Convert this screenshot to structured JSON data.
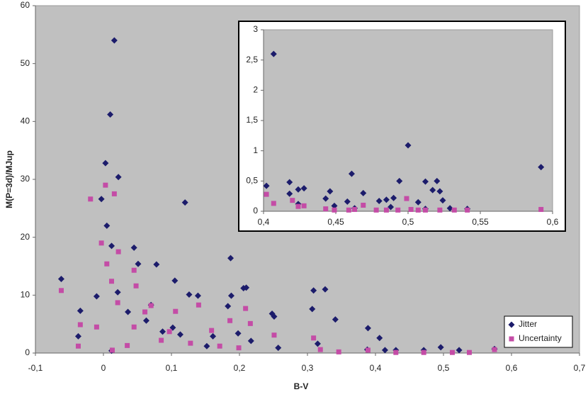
{
  "chart_data": [
    {
      "type": "scatter",
      "x_label": "B-V",
      "y_label": "M(P=3d)/MJup",
      "legend": "bottom-right",
      "xlim": [
        -0.1,
        0.7
      ],
      "ylim": [
        0,
        60
      ],
      "xticks": [
        {
          "value": -0.1,
          "label": "-0,1"
        },
        0,
        {
          "value": 0.1,
          "label": "0,1"
        },
        {
          "value": 0.2,
          "label": "0,2"
        },
        {
          "value": 0.3,
          "label": "0,3"
        },
        {
          "value": 0.4,
          "label": "0,4"
        },
        {
          "value": 0.5,
          "label": "0,5"
        },
        {
          "value": 0.6,
          "label": "0,6"
        },
        {
          "value": 0.7,
          "label": "0,7"
        }
      ],
      "yticks": [
        0,
        10,
        20,
        30,
        40,
        50,
        60
      ],
      "series": [
        {
          "name": "Jitter",
          "color": "#1c1c6b",
          "marker": "diamond",
          "x": [
            0.016,
            0.01,
            0.003,
            -0.003,
            0.022,
            0.005,
            0.012,
            0.045,
            0.12,
            -0.062,
            -0.034,
            -0.01,
            0.021,
            0.051,
            0.078,
            0.105,
            0.126,
            0.139,
            0.187,
            0.188,
            0.206,
            0.21,
            0.183,
            0.309,
            0.326,
            0.307,
            0.341,
            0.248,
            0.251,
            0.389,
            0.406,
            0.07,
            0.036,
            0.087,
            0.102,
            0.113,
            0.161,
            0.198,
            0.012,
            -0.037,
            0.063,
            0.152,
            0.217,
            0.257,
            0.315,
            0.388,
            0.414,
            0.496,
            0.575,
            0.43,
            0.471,
            0.523
          ],
          "values": [
            54,
            41.2,
            32.8,
            26.6,
            30.4,
            22,
            18.5,
            18.2,
            26,
            12.8,
            7.3,
            9.8,
            10.5,
            15.4,
            15.3,
            12.5,
            10.1,
            9.9,
            16.4,
            9.9,
            11.2,
            11.3,
            8.1,
            10.8,
            11,
            7.6,
            5.8,
            6.8,
            6.3,
            4.3,
            2.6,
            8.3,
            7.1,
            3.7,
            4.4,
            3.2,
            2.9,
            3.4,
            0.4,
            2.9,
            5.6,
            1.2,
            2.1,
            0.9,
            1.6,
            0.6,
            0.5,
            1.0,
            0.7,
            0.5,
            0.5,
            0.5
          ]
        },
        {
          "name": "Uncertainty",
          "color": "#c44ca6",
          "marker": "square",
          "x": [
            -0.019,
            0.003,
            0.016,
            -0.003,
            0.022,
            0.005,
            0.012,
            0.045,
            0.048,
            -0.062,
            0.021,
            -0.01,
            0.14,
            0.07,
            0.106,
            0.061,
            0.209,
            0.186,
            0.216,
            0.309,
            0.251,
            -0.034,
            -0.037,
            0.013,
            0.035,
            0.085,
            0.128,
            0.171,
            0.199,
            0.319,
            0.346,
            0.389,
            0.43,
            0.471,
            0.513,
            0.538,
            0.575,
            0.045,
            0.097,
            0.159
          ],
          "values": [
            26.6,
            29,
            27.5,
            19,
            17.5,
            15.4,
            12.4,
            14.3,
            11.6,
            10.8,
            8.7,
            4.5,
            8.3,
            8.2,
            7.2,
            7.1,
            7.7,
            5.6,
            5.1,
            2.6,
            3.1,
            4.9,
            1.2,
            0.5,
            1.3,
            2.2,
            1.7,
            1.2,
            0.9,
            0.6,
            0.2,
            0.5,
            0.1,
            0.1,
            0.1,
            0.1,
            0.6,
            4.5,
            3.7,
            3.9
          ]
        }
      ]
    },
    {
      "type": "scatter",
      "xlim": [
        0.4,
        0.6
      ],
      "ylim": [
        0,
        3
      ],
      "xticks": [
        {
          "value": 0.4,
          "label": "0,4"
        },
        {
          "value": 0.45,
          "label": "0,45"
        },
        {
          "value": 0.5,
          "label": "0,5"
        },
        {
          "value": 0.55,
          "label": "0,55"
        },
        {
          "value": 0.6,
          "label": "0,6"
        }
      ],
      "yticks": [
        0,
        {
          "value": 0.5,
          "label": "0,5"
        },
        1,
        {
          "value": 1.5,
          "label": "1,5"
        },
        2,
        {
          "value": 2.5,
          "label": "2,5"
        },
        3
      ],
      "series": [
        {
          "color": "#1c1c6b",
          "marker": "diamond",
          "x": [
            0.407,
            0.5,
            0.592,
            0.461,
            0.402,
            0.418,
            0.424,
            0.428,
            0.418,
            0.446,
            0.443,
            0.458,
            0.469,
            0.48,
            0.485,
            0.49,
            0.494,
            0.512,
            0.52,
            0.517,
            0.522,
            0.524,
            0.507,
            0.449,
            0.463,
            0.488,
            0.512,
            0.529,
            0.541,
            0.424
          ],
          "values": [
            2.6,
            1.09,
            0.73,
            0.62,
            0.42,
            0.48,
            0.36,
            0.38,
            0.29,
            0.33,
            0.21,
            0.16,
            0.3,
            0.17,
            0.19,
            0.22,
            0.5,
            0.49,
            0.5,
            0.35,
            0.33,
            0.18,
            0.15,
            0.09,
            0.05,
            0.07,
            0.04,
            0.05,
            0.04,
            0.12
          ]
        },
        {
          "color": "#c44ca6",
          "marker": "square",
          "x": [
            0.402,
            0.407,
            0.42,
            0.424,
            0.428,
            0.443,
            0.449,
            0.459,
            0.469,
            0.478,
            0.485,
            0.493,
            0.499,
            0.502,
            0.512,
            0.522,
            0.532,
            0.541,
            0.592,
            0.463,
            0.507
          ],
          "values": [
            0.28,
            0.13,
            0.18,
            0.08,
            0.09,
            0.04,
            0.02,
            0.02,
            0.1,
            0.02,
            0.02,
            0.02,
            0.21,
            0.03,
            0.02,
            0.02,
            0.02,
            0.02,
            0.03,
            0.03,
            0.02
          ]
        }
      ]
    }
  ]
}
